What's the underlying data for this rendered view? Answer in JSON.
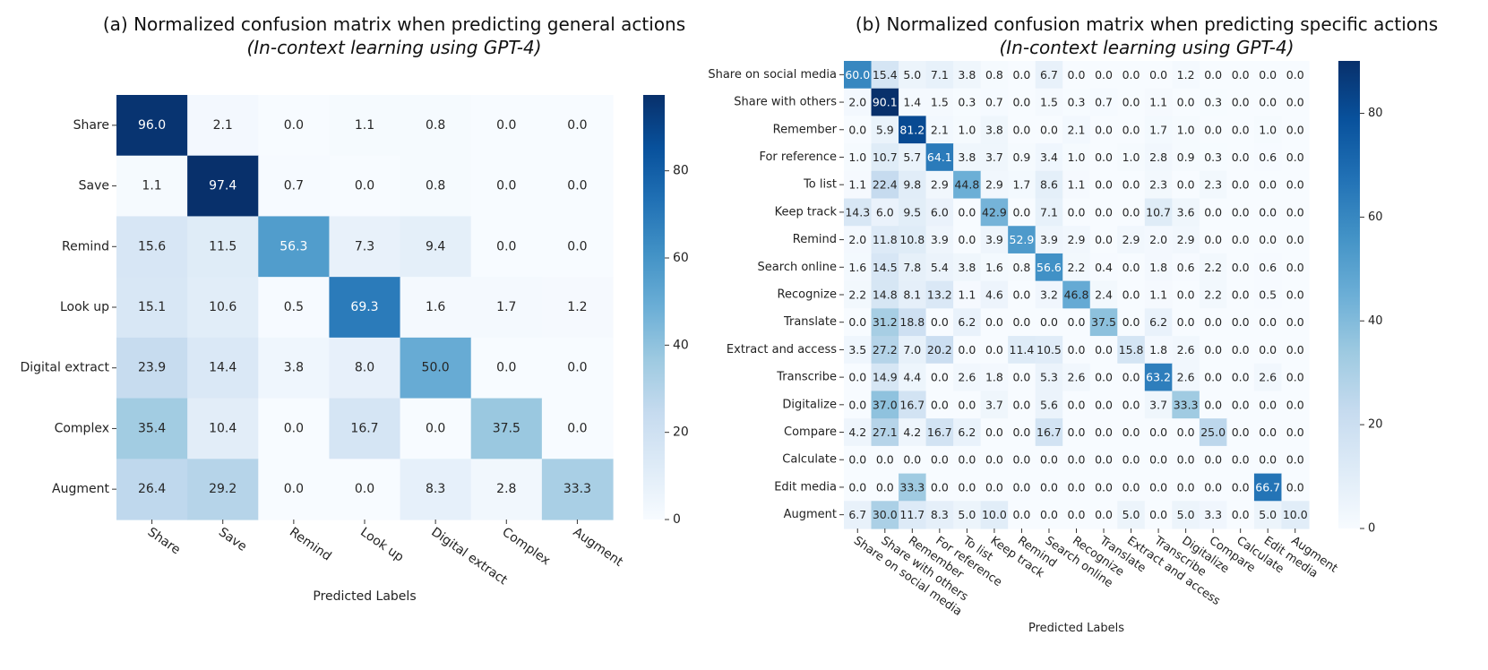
{
  "chart_data": [
    {
      "type": "heatmap",
      "title": "(a) Normalized confusion matrix when predicting general actions",
      "subtitle": "(In-context learning using GPT-4)",
      "xlabel": "Predicted Labels",
      "ylabel": "",
      "x_categories": [
        "Share",
        "Save",
        "Remind",
        "Look up",
        "Digital extract",
        "Complex",
        "Augment"
      ],
      "y_categories": [
        "Share",
        "Save",
        "Remind",
        "Look up",
        "Digital extract",
        "Complex",
        "Augment"
      ],
      "values": [
        [
          96.0,
          2.1,
          0.0,
          1.1,
          0.8,
          0.0,
          0.0
        ],
        [
          1.1,
          97.4,
          0.7,
          0.0,
          0.8,
          0.0,
          0.0
        ],
        [
          15.6,
          11.5,
          56.3,
          7.3,
          9.4,
          0.0,
          0.0
        ],
        [
          15.1,
          10.6,
          0.5,
          69.3,
          1.6,
          1.7,
          1.2
        ],
        [
          23.9,
          14.4,
          3.8,
          8.0,
          50.0,
          0.0,
          0.0
        ],
        [
          35.4,
          10.4,
          0.0,
          16.7,
          0.0,
          37.5,
          0.0
        ],
        [
          26.4,
          29.2,
          0.0,
          0.0,
          8.3,
          2.8,
          33.3
        ]
      ],
      "colorbar": {
        "min": 0,
        "max": 97.4,
        "ticks": [
          "0",
          "20",
          "40",
          "60",
          "80"
        ],
        "colormap": "Blues"
      }
    },
    {
      "type": "heatmap",
      "title": "(b) Normalized confusion matrix when predicting specific actions",
      "subtitle": "(In-context learning using GPT-4)",
      "xlabel": "Predicted Labels",
      "ylabel": "",
      "x_categories": [
        "Share on social media",
        "Share with others",
        "Remember",
        "For reference",
        "To list",
        "Keep track",
        "Remind",
        "Search online",
        "Recognize",
        "Translate",
        "Extract and access",
        "Transcribe",
        "Digitalize",
        "Compare",
        "Calculate",
        "Edit media",
        "Augment"
      ],
      "y_categories": [
        "Share on social media",
        "Share with others",
        "Remember",
        "For reference",
        "To list",
        "Keep track",
        "Remind",
        "Search online",
        "Recognize",
        "Translate",
        "Extract and access",
        "Transcribe",
        "Digitalize",
        "Compare",
        "Calculate",
        "Edit media",
        "Augment"
      ],
      "values": [
        [
          60.0,
          15.4,
          5.0,
          7.1,
          3.8,
          0.8,
          0.0,
          6.7,
          0.0,
          0.0,
          0.0,
          0.0,
          1.2,
          0.0,
          0.0,
          0.0,
          0.0
        ],
        [
          2.0,
          90.1,
          1.4,
          1.5,
          0.3,
          0.7,
          0.0,
          1.5,
          0.3,
          0.7,
          0.0,
          1.1,
          0.0,
          0.3,
          0.0,
          0.0,
          0.0
        ],
        [
          0.0,
          5.9,
          81.2,
          2.1,
          1.0,
          3.8,
          0.0,
          0.0,
          2.1,
          0.0,
          0.0,
          1.7,
          1.0,
          0.0,
          0.0,
          1.0,
          0.0
        ],
        [
          1.0,
          10.7,
          5.7,
          64.1,
          3.8,
          3.7,
          0.9,
          3.4,
          1.0,
          0.0,
          1.0,
          2.8,
          0.9,
          0.3,
          0.0,
          0.6,
          0.0
        ],
        [
          1.1,
          22.4,
          9.8,
          2.9,
          44.8,
          2.9,
          1.7,
          8.6,
          1.1,
          0.0,
          0.0,
          2.3,
          0.0,
          2.3,
          0.0,
          0.0,
          0.0
        ],
        [
          14.3,
          6.0,
          9.5,
          6.0,
          0.0,
          42.9,
          0.0,
          7.1,
          0.0,
          0.0,
          0.0,
          10.7,
          3.6,
          0.0,
          0.0,
          0.0,
          0.0
        ],
        [
          2.0,
          11.8,
          10.8,
          3.9,
          0.0,
          3.9,
          52.9,
          3.9,
          2.9,
          0.0,
          2.9,
          2.0,
          2.9,
          0.0,
          0.0,
          0.0,
          0.0
        ],
        [
          1.6,
          14.5,
          7.8,
          5.4,
          3.8,
          1.6,
          0.8,
          56.6,
          2.2,
          0.4,
          0.0,
          1.8,
          0.6,
          2.2,
          0.0,
          0.6,
          0.0
        ],
        [
          2.2,
          14.8,
          8.1,
          13.2,
          1.1,
          4.6,
          0.0,
          3.2,
          46.8,
          2.4,
          0.0,
          1.1,
          0.0,
          2.2,
          0.0,
          0.5,
          0.0
        ],
        [
          0.0,
          31.2,
          18.8,
          0.0,
          6.2,
          0.0,
          0.0,
          0.0,
          0.0,
          37.5,
          0.0,
          6.2,
          0.0,
          0.0,
          0.0,
          0.0,
          0.0
        ],
        [
          3.5,
          27.2,
          7.0,
          20.2,
          0.0,
          0.0,
          11.4,
          10.5,
          0.0,
          0.0,
          15.8,
          1.8,
          2.6,
          0.0,
          0.0,
          0.0,
          0.0
        ],
        [
          0.0,
          14.9,
          4.4,
          0.0,
          2.6,
          1.8,
          0.0,
          5.3,
          2.6,
          0.0,
          0.0,
          63.2,
          2.6,
          0.0,
          0.0,
          2.6,
          0.0
        ],
        [
          0.0,
          37.0,
          16.7,
          0.0,
          0.0,
          3.7,
          0.0,
          5.6,
          0.0,
          0.0,
          0.0,
          3.7,
          33.3,
          0.0,
          0.0,
          0.0,
          0.0
        ],
        [
          4.2,
          27.1,
          4.2,
          16.7,
          6.2,
          0.0,
          0.0,
          16.7,
          0.0,
          0.0,
          0.0,
          0.0,
          0.0,
          25.0,
          0.0,
          0.0,
          0.0
        ],
        [
          0.0,
          0.0,
          0.0,
          0.0,
          0.0,
          0.0,
          0.0,
          0.0,
          0.0,
          0.0,
          0.0,
          0.0,
          0.0,
          0.0,
          0.0,
          0.0,
          0.0
        ],
        [
          0.0,
          0.0,
          33.3,
          0.0,
          0.0,
          0.0,
          0.0,
          0.0,
          0.0,
          0.0,
          0.0,
          0.0,
          0.0,
          0.0,
          0.0,
          66.7,
          0.0
        ],
        [
          6.7,
          30.0,
          11.7,
          8.3,
          5.0,
          10.0,
          0.0,
          0.0,
          0.0,
          0.0,
          5.0,
          0.0,
          5.0,
          3.3,
          0.0,
          5.0,
          10.0
        ]
      ],
      "colorbar": {
        "min": 0,
        "max": 90.1,
        "ticks": [
          "0",
          "20",
          "40",
          "60",
          "80"
        ],
        "colormap": "Blues"
      }
    }
  ]
}
